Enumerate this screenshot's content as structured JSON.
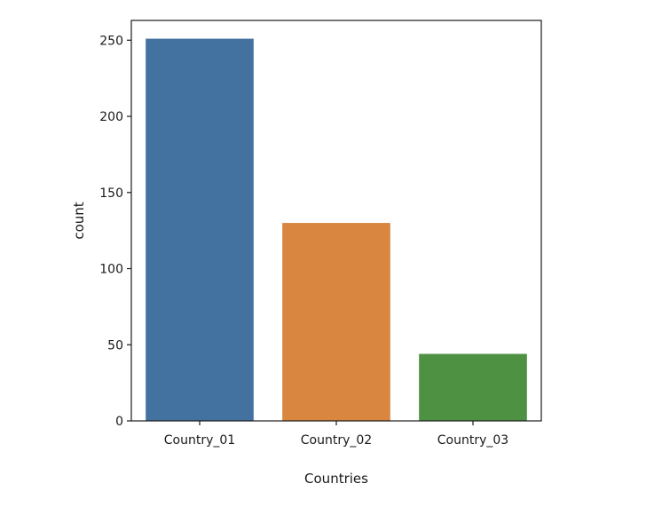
{
  "chart_data": {
    "type": "bar",
    "title": "",
    "xlabel": "Countries",
    "ylabel": "count",
    "categories": [
      "Country_01",
      "Country_02",
      "Country_03"
    ],
    "values": [
      251,
      130,
      44
    ],
    "colors": [
      "#4472a0",
      "#d98640",
      "#4f9143"
    ],
    "ylim": [
      0,
      263
    ],
    "yticks": [
      0,
      50,
      100,
      150,
      200,
      250
    ],
    "grid": false,
    "legend": "none"
  }
}
